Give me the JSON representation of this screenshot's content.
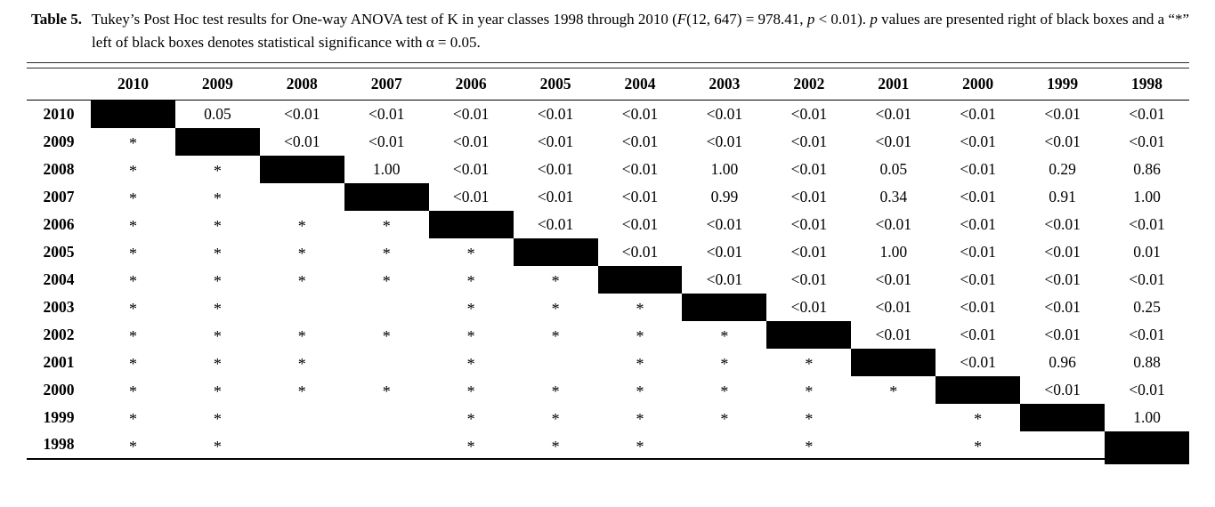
{
  "caption": {
    "label": "Table 5.",
    "segments": [
      {
        "text": "Tukey’s Post Hoc test results for One-way ANOVA test of K in year classes 1998 through 2010 (",
        "style": "normal"
      },
      {
        "text": "F",
        "style": "italic"
      },
      {
        "text": "(12, 647) = 978.41, ",
        "style": "normal"
      },
      {
        "text": "p",
        "style": "italic"
      },
      {
        "text": " < 0.01). ",
        "style": "normal"
      },
      {
        "text": "p",
        "style": "italic"
      },
      {
        "text": " values are presented right of black boxes and a “*” left of black boxes denotes statistical significance with α = 0.05.",
        "style": "normal"
      }
    ]
  },
  "table": {
    "markers": {
      "diagonal": "BOX",
      "significant": "*",
      "empty": ""
    },
    "colors": {
      "diagonal_box": "#000000",
      "text": "#000000",
      "background": "#ffffff"
    },
    "columns": [
      "2010",
      "2009",
      "2008",
      "2007",
      "2006",
      "2005",
      "2004",
      "2003",
      "2002",
      "2001",
      "2000",
      "1999",
      "1998"
    ],
    "rows": [
      {
        "label": "2010",
        "cells": [
          "BOX",
          "0.05",
          "<0.01",
          "<0.01",
          "<0.01",
          "<0.01",
          "<0.01",
          "<0.01",
          "<0.01",
          "<0.01",
          "<0.01",
          "<0.01",
          "<0.01"
        ]
      },
      {
        "label": "2009",
        "cells": [
          "*",
          "BOX",
          "<0.01",
          "<0.01",
          "<0.01",
          "<0.01",
          "<0.01",
          "<0.01",
          "<0.01",
          "<0.01",
          "<0.01",
          "<0.01",
          "<0.01"
        ]
      },
      {
        "label": "2008",
        "cells": [
          "*",
          "*",
          "BOX",
          "1.00",
          "<0.01",
          "<0.01",
          "<0.01",
          "1.00",
          "<0.01",
          "0.05",
          "<0.01",
          "0.29",
          "0.86"
        ]
      },
      {
        "label": "2007",
        "cells": [
          "*",
          "*",
          "",
          "BOX",
          "<0.01",
          "<0.01",
          "<0.01",
          "0.99",
          "<0.01",
          "0.34",
          "<0.01",
          "0.91",
          "1.00"
        ]
      },
      {
        "label": "2006",
        "cells": [
          "*",
          "*",
          "*",
          "*",
          "BOX",
          "<0.01",
          "<0.01",
          "<0.01",
          "<0.01",
          "<0.01",
          "<0.01",
          "<0.01",
          "<0.01"
        ]
      },
      {
        "label": "2005",
        "cells": [
          "*",
          "*",
          "*",
          "*",
          "*",
          "BOX",
          "<0.01",
          "<0.01",
          "<0.01",
          "1.00",
          "<0.01",
          "<0.01",
          "0.01"
        ]
      },
      {
        "label": "2004",
        "cells": [
          "*",
          "*",
          "*",
          "*",
          "*",
          "*",
          "BOX",
          "<0.01",
          "<0.01",
          "<0.01",
          "<0.01",
          "<0.01",
          "<0.01"
        ]
      },
      {
        "label": "2003",
        "cells": [
          "*",
          "*",
          "",
          "",
          "*",
          "*",
          "*",
          "BOX",
          "<0.01",
          "<0.01",
          "<0.01",
          "<0.01",
          "0.25"
        ]
      },
      {
        "label": "2002",
        "cells": [
          "*",
          "*",
          "*",
          "*",
          "*",
          "*",
          "*",
          "*",
          "BOX",
          "<0.01",
          "<0.01",
          "<0.01",
          "<0.01"
        ]
      },
      {
        "label": "2001",
        "cells": [
          "*",
          "*",
          "*",
          "",
          "*",
          "",
          "*",
          "*",
          "*",
          "BOX",
          "<0.01",
          "0.96",
          "0.88"
        ]
      },
      {
        "label": "2000",
        "cells": [
          "*",
          "*",
          "*",
          "*",
          "*",
          "*",
          "*",
          "*",
          "*",
          "*",
          "BOX",
          "<0.01",
          "<0.01"
        ]
      },
      {
        "label": "1999",
        "cells": [
          "*",
          "*",
          "",
          "",
          "*",
          "*",
          "*",
          "*",
          "*",
          "",
          "*",
          "BOX",
          "1.00"
        ]
      },
      {
        "label": "1998",
        "cells": [
          "*",
          "*",
          "",
          "",
          "*",
          "*",
          "*",
          "",
          "*",
          "",
          "*",
          "",
          "BOX"
        ]
      }
    ]
  }
}
